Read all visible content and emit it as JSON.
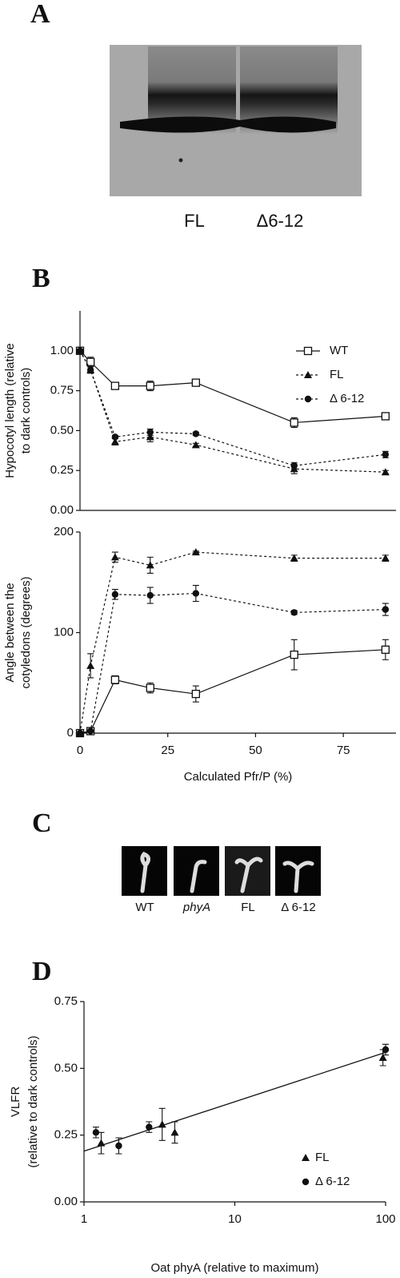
{
  "panel_labels": [
    "A",
    "B",
    "C",
    "D"
  ],
  "blot": {
    "lanes": [
      "FL",
      "Δ6-12"
    ]
  },
  "seedlings": {
    "labels": [
      "WT",
      "phyA",
      "FL",
      "Δ 6-12"
    ]
  },
  "chart_data": [
    {
      "type": "line",
      "ylabel": [
        "Hypocotyl length (relative",
        "to dark controls)"
      ],
      "x": [
        0,
        3,
        10,
        20,
        33,
        61,
        87
      ],
      "xlim": [
        0,
        90
      ],
      "ylim": [
        0,
        1.25
      ],
      "yticks": [
        {
          "value": 0,
          "label": "0.00"
        },
        {
          "value": 0.25,
          "label": "0.25"
        },
        {
          "value": 0.5,
          "label": "0.50"
        },
        {
          "value": 0.75,
          "label": "0.75"
        },
        {
          "value": 1,
          "label": "1.00"
        }
      ],
      "legend": "upper right",
      "series": [
        {
          "name": "WT",
          "color": "#111111",
          "marker": "open-square",
          "linestyle": "solid",
          "values": [
            1.0,
            0.93,
            0.78,
            0.78,
            0.8,
            0.55,
            0.59
          ],
          "errors": [
            0.01,
            0.03,
            0.01,
            0.03,
            0.01,
            0.03,
            0.01
          ]
        },
        {
          "name": "FL",
          "color": "#111111",
          "marker": "triangle",
          "linestyle": "dashed",
          "values": [
            1.0,
            0.88,
            0.43,
            0.46,
            0.41,
            0.26,
            0.24
          ],
          "errors": [
            0.01,
            0.02,
            0.02,
            0.03,
            0.01,
            0.03,
            0.01
          ]
        },
        {
          "name": "Δ 6-12",
          "color": "#111111",
          "marker": "circle",
          "linestyle": "dashed",
          "values": [
            1.0,
            0.88,
            0.46,
            0.49,
            0.48,
            0.28,
            0.35
          ],
          "errors": [
            0.01,
            0.02,
            0.01,
            0.02,
            0.01,
            0.02,
            0.02
          ]
        }
      ]
    },
    {
      "type": "line",
      "xlabel": "Calculated Pfr/P (%)",
      "ylabel": [
        "Angle between the",
        "cotyledons (degrees)"
      ],
      "x": [
        0,
        3,
        10,
        20,
        33,
        61,
        87
      ],
      "xlim": [
        0,
        90
      ],
      "xticks": [
        0,
        25,
        50,
        75
      ],
      "ylim": [
        0,
        200
      ],
      "yticks": [
        0,
        100,
        200
      ],
      "series": [
        {
          "color": "#111111",
          "marker": "open-square",
          "linestyle": "solid",
          "values": [
            0,
            2,
            53,
            45,
            39,
            78,
            83
          ],
          "errors": [
            1,
            1,
            4,
            5,
            8,
            15,
            10
          ]
        },
        {
          "color": "#111111",
          "marker": "triangle",
          "linestyle": "dashed",
          "values": [
            0,
            67,
            175,
            167,
            180,
            174,
            174
          ],
          "errors": [
            1,
            12,
            5,
            8,
            1,
            3,
            3
          ]
        },
        {
          "color": "#111111",
          "marker": "circle",
          "linestyle": "dashed",
          "values": [
            0,
            2,
            138,
            137,
            139,
            120,
            123
          ],
          "errors": [
            1,
            1,
            5,
            8,
            8,
            2,
            6
          ]
        }
      ]
    },
    {
      "type": "scatter",
      "xlabel": "Oat phyA (relative to maximum)",
      "ylabel": [
        "VLFR",
        "(relative to dark controls)"
      ],
      "xscale": "log",
      "xlim": [
        1,
        100
      ],
      "xticks": [
        1,
        10,
        100
      ],
      "ylim": [
        0,
        0.75
      ],
      "yticks": [
        {
          "value": 0,
          "label": "0.00"
        },
        {
          "value": 0.25,
          "label": "0.25"
        },
        {
          "value": 0.5,
          "label": "0.50"
        },
        {
          "value": 0.75,
          "label": "0.75"
        }
      ],
      "legend": "lower right",
      "fit": {
        "x": [
          1,
          100
        ],
        "values": [
          0.19,
          0.56
        ]
      },
      "series": [
        {
          "name": "FL",
          "color": "#111111",
          "marker": "triangle",
          "x": [
            1.3,
            3.3,
            4.0,
            96
          ],
          "values": [
            0.22,
            0.29,
            0.26,
            0.54
          ],
          "errors": [
            0.04,
            0.06,
            0.04,
            0.03
          ]
        },
        {
          "name": "Δ 6-12",
          "color": "#111111",
          "marker": "circle",
          "x": [
            1.2,
            1.7,
            2.7,
            100
          ],
          "values": [
            0.26,
            0.21,
            0.28,
            0.57
          ],
          "errors": [
            0.02,
            0.03,
            0.02,
            0.02
          ]
        }
      ]
    }
  ]
}
